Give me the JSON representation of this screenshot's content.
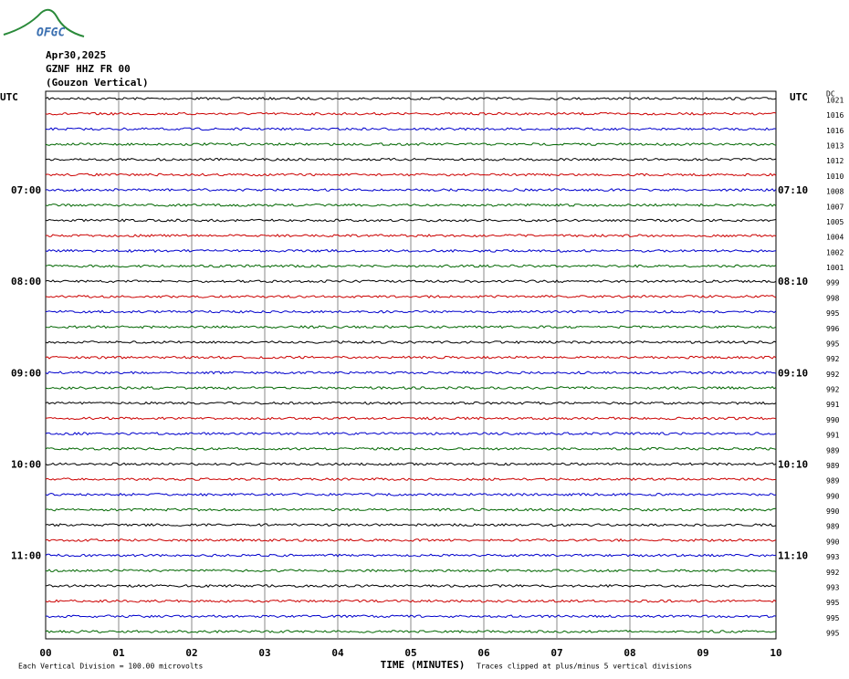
{
  "header": {
    "logo": "OFGC",
    "date": "Apr30,2025",
    "station": "GZNF HHZ FR 00",
    "location": "(Gouzon Vertical)",
    "utc_left": "UTC",
    "utc_right": "UTC",
    "dc_title": "DC"
  },
  "rows": {
    "left_labels": [
      null,
      null,
      null,
      null,
      null,
      null,
      "07:00",
      null,
      null,
      null,
      null,
      null,
      "08:00",
      null,
      null,
      null,
      null,
      null,
      "09:00",
      null,
      null,
      null,
      null,
      null,
      "10:00",
      null,
      null,
      null,
      null,
      null,
      "11:00",
      null,
      null,
      null,
      null,
      null
    ],
    "right_labels": [
      null,
      null,
      null,
      null,
      null,
      null,
      "07:10",
      null,
      null,
      null,
      null,
      null,
      "08:10",
      null,
      null,
      null,
      null,
      null,
      "09:10",
      null,
      null,
      null,
      null,
      null,
      "10:10",
      null,
      null,
      null,
      null,
      null,
      "11:10",
      null,
      null,
      null,
      null,
      null
    ],
    "dc": [
      1021,
      1016,
      1016,
      1013,
      1012,
      1010,
      1008,
      1007,
      1005,
      1004,
      1002,
      1001,
      999,
      998,
      995,
      996,
      995,
      992,
      992,
      992,
      991,
      990,
      991,
      989,
      989,
      989,
      990,
      990,
      989,
      990,
      993,
      992,
      993,
      995,
      995,
      995
    ],
    "trace_colors": [
      "#000000",
      "#cc0000",
      "#0000cc",
      "#006600"
    ]
  },
  "x_axis": {
    "title": "TIME (MINUTES)",
    "ticks": [
      "00",
      "01",
      "02",
      "03",
      "04",
      "05",
      "06",
      "07",
      "08",
      "09",
      "10"
    ]
  },
  "footer": {
    "scale": "Each Vertical Division =  100.00 microvolts",
    "clip": "Traces clipped at plus/minus 5 vertical divisions"
  }
}
